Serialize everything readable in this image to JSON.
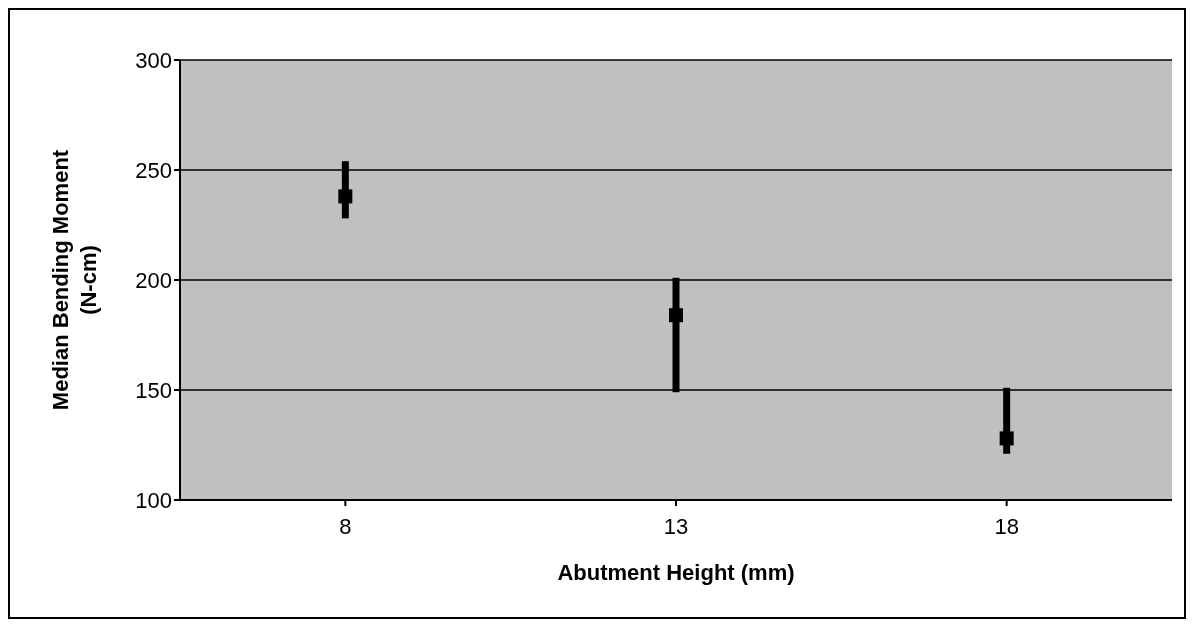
{
  "chart_data": {
    "type": "scatter",
    "xlabel": "Abutment Height (mm)",
    "ylabel": "Median Bending Moment\n(N-cm)",
    "categories": [
      "8",
      "13",
      "18"
    ],
    "values": [
      238,
      184,
      128
    ],
    "errors": [
      [
        228,
        254
      ],
      [
        149,
        201
      ],
      [
        121,
        151
      ]
    ],
    "color": "#000000",
    "marker": "square",
    "ylim": [
      100,
      300
    ],
    "yticks": [
      100,
      150,
      200,
      250,
      300
    ],
    "grid": "y"
  }
}
